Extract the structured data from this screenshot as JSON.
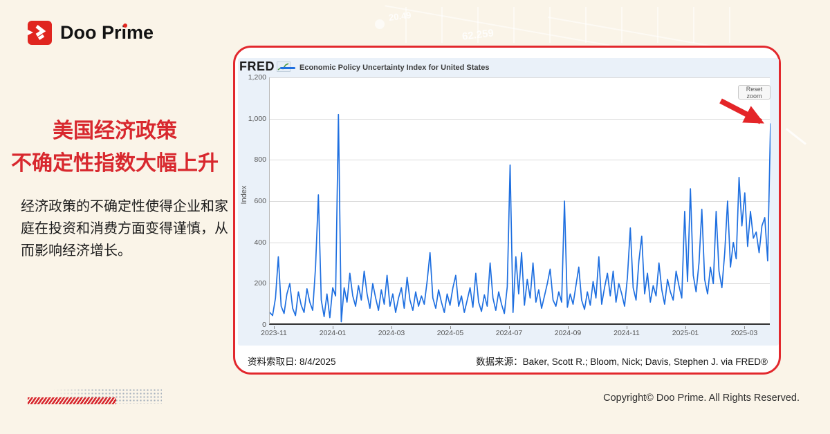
{
  "brand": {
    "logo_text": "Doo Prime"
  },
  "headline": {
    "line1": "美国经济政策",
    "line2": "不确定性指数大幅上升"
  },
  "body_text": "经济政策的不确定性使得企业和家庭在投资和消费方面变得谨慎，从而影响经济增长。",
  "decor": {
    "watermark_numbers": [
      "20.49",
      "62.259"
    ]
  },
  "chart_card": {
    "fred_logo_text": "FRED",
    "reset_zoom_label": "Reset zoom",
    "retrieved_label": "资料索取日: 8/4/2025",
    "source_label": "数据来源：Baker, Scott R.; Bloom, Nick; Davis, Stephen J. via FRED®"
  },
  "colors": {
    "accent_red": "#d8282e",
    "card_border_red": "#e2282d",
    "line_blue": "#1e6fe0",
    "logo_red": "#e0251f",
    "widget_background": "#eaf1f9"
  },
  "chart_data": {
    "type": "line",
    "title": "Economic Policy Uncertainty Index for United States",
    "xlabel": "",
    "ylabel": "Index",
    "ylim": [
      0,
      1200
    ],
    "yticks": [
      0,
      200,
      400,
      600,
      800,
      1000,
      1200
    ],
    "ytick_labels": [
      "0",
      "200",
      "400",
      "600",
      "800",
      "1,000",
      "1,200"
    ],
    "xtick_labels": [
      "2023-11",
      "2024-01",
      "2024-03",
      "2024-05",
      "2024-07",
      "2024-09",
      "2024-11",
      "2025-01",
      "2025-03"
    ],
    "x_start": "2023-10-27",
    "x_end": "2025-04-03",
    "grid": "horizontal",
    "legend_position": "top-left",
    "annotations": [
      "red arrow pointing to final spike ~975 in early April 2025"
    ],
    "series": [
      {
        "name": "Economic Policy Uncertainty Index for United States",
        "values": [
          60,
          45,
          130,
          330,
          90,
          55,
          150,
          200,
          80,
          45,
          160,
          95,
          60,
          175,
          110,
          70,
          280,
          630,
          120,
          40,
          150,
          35,
          180,
          140,
          1020,
          15,
          180,
          110,
          250,
          140,
          90,
          190,
          120,
          260,
          150,
          80,
          200,
          130,
          70,
          170,
          100,
          240,
          90,
          150,
          60,
          130,
          180,
          80,
          230,
          120,
          70,
          160,
          90,
          140,
          100,
          210,
          350,
          130,
          80,
          170,
          110,
          60,
          150,
          95,
          180,
          240,
          90,
          140,
          60,
          120,
          180,
          85,
          250,
          110,
          65,
          145,
          90,
          300,
          130,
          70,
          160,
          100,
          55,
          185,
          775,
          60,
          330,
          150,
          350,
          95,
          220,
          130,
          300,
          110,
          170,
          80,
          140,
          200,
          270,
          120,
          90,
          160,
          110,
          600,
          85,
          150,
          100,
          190,
          280,
          120,
          75,
          160,
          95,
          210,
          130,
          330,
          100,
          180,
          250,
          140,
          260,
          110,
          200,
          150,
          90,
          230,
          470,
          180,
          120,
          310,
          430,
          150,
          250,
          110,
          190,
          140,
          300,
          170,
          100,
          220,
          160,
          120,
          260,
          190,
          130,
          550,
          210,
          660,
          240,
          160,
          300,
          560,
          220,
          150,
          280,
          200,
          550,
          260,
          180,
          350,
          600,
          280,
          400,
          320,
          715,
          480,
          640,
          380,
          550,
          420,
          450,
          350,
          480,
          520,
          310,
          975
        ]
      }
    ]
  },
  "footer": {
    "copyright": "Copyright© Doo Prime. All Rights Reserved."
  }
}
